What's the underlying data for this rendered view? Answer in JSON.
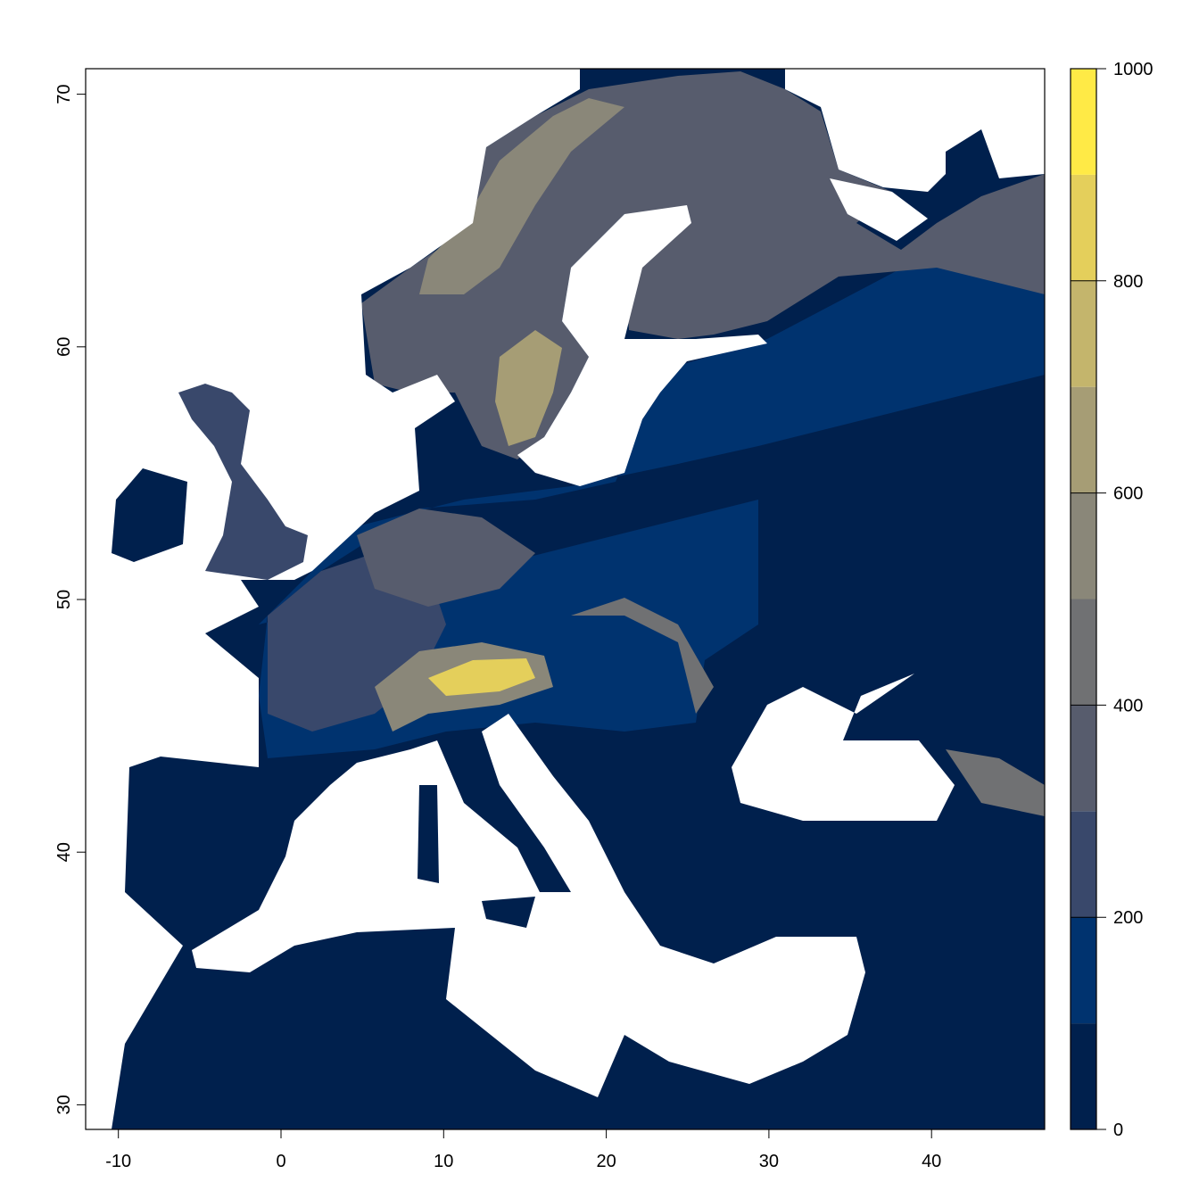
{
  "map": {
    "x_axis": {
      "ticks": [
        -10,
        0,
        10,
        20,
        30,
        40
      ],
      "range": [
        -12,
        47
      ]
    },
    "y_axis": {
      "ticks": [
        30,
        40,
        50,
        60,
        70
      ],
      "range": [
        29,
        71
      ]
    },
    "background_color": "#ffffff"
  },
  "legend": {
    "ticks": [
      0,
      200,
      400,
      600,
      800,
      1000
    ],
    "breaks": [
      0,
      100,
      200,
      300,
      400,
      500,
      600,
      700,
      800,
      900,
      1000
    ],
    "colors": [
      "#00204D",
      "#00336F",
      "#39486B",
      "#575C6D",
      "#707173",
      "#8A8779",
      "#A69D75",
      "#C4B56C",
      "#E4CF5B",
      "#FFEA46"
    ],
    "palette": "cividis",
    "placement": "right"
  }
}
